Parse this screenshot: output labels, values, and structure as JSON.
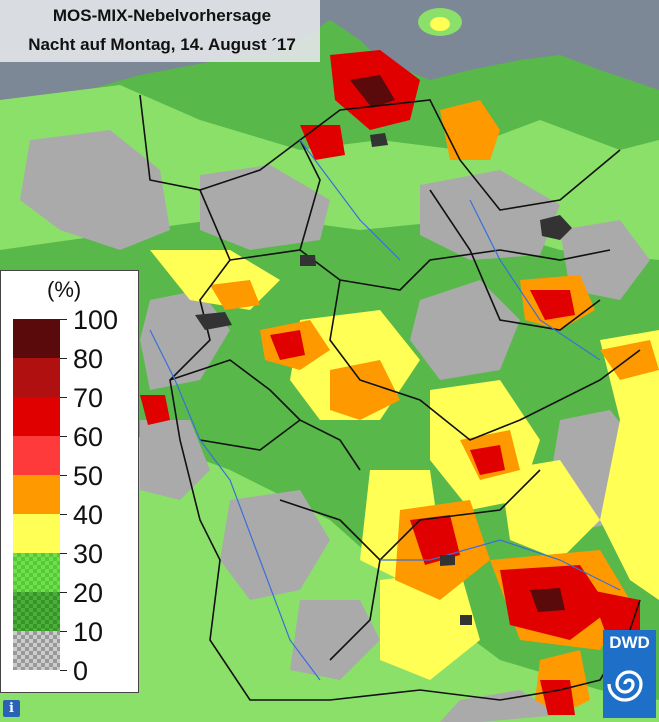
{
  "title": {
    "line1": "MOS-MIX-Nebelvorhersage",
    "line2": "Nacht auf Montag, 14. August ´17"
  },
  "legend": {
    "unit": "(%)",
    "ticks": [
      "100",
      "80",
      "70",
      "60",
      "50",
      "40",
      "30",
      "20",
      "10",
      "0"
    ],
    "classes": [
      {
        "range": "80-100",
        "color": "#5a0a0a"
      },
      {
        "range": "70-80",
        "color": "#b01010"
      },
      {
        "range": "60-70",
        "color": "#e00000"
      },
      {
        "range": "50-60",
        "color": "#ff3a3a"
      },
      {
        "range": "40-50",
        "color": "#ff9900"
      },
      {
        "range": "30-40",
        "color": "#ffff55"
      },
      {
        "range": "20-30",
        "color": "#66dd44",
        "pattern": "checker-light"
      },
      {
        "range": "10-20",
        "color": "#44a833",
        "pattern": "checker-dark"
      },
      {
        "range": "0-10",
        "color": "#bbbbbb",
        "pattern": "checker-grey"
      }
    ]
  },
  "logo": {
    "text": "DWD"
  },
  "info_icon": {
    "glyph": "i"
  },
  "colors": {
    "sea": "#7d8896",
    "background_land": "#aaaaaa",
    "borders": "#111111",
    "rivers": "#3b6fd8"
  }
}
